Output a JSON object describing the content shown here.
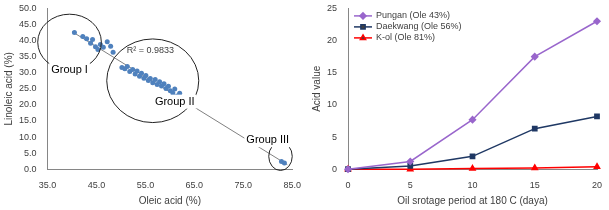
{
  "chart_data": [
    {
      "type": "scatter",
      "x_label": "Oleic acid (%)",
      "y_label": "Linoleic acid (%)",
      "xlim": [
        35,
        85
      ],
      "xticks": [
        {
          "value": 35,
          "label": "35.0"
        },
        {
          "value": 45,
          "label": "45.0"
        },
        {
          "value": 55,
          "label": "55.0"
        },
        {
          "value": 65,
          "label": "65.0"
        },
        {
          "value": 75,
          "label": "75.0"
        },
        {
          "value": 85,
          "label": "85.0"
        }
      ],
      "ylim": [
        0,
        50
      ],
      "yticks": [
        {
          "value": 0,
          "label": "0.0"
        },
        {
          "value": 5,
          "label": "5.0"
        },
        {
          "value": 10,
          "label": "10.0"
        },
        {
          "value": 15,
          "label": "15.0"
        },
        {
          "value": 20,
          "label": "20.0"
        },
        {
          "value": 25,
          "label": "25.0"
        },
        {
          "value": 30,
          "label": "30.0"
        },
        {
          "value": 35,
          "label": "35.0"
        },
        {
          "value": 40,
          "label": "40.0"
        },
        {
          "value": 45,
          "label": "45.0"
        },
        {
          "value": 50,
          "label": "50.0"
        }
      ],
      "grid": false,
      "annotations": [
        {
          "text": "R² = 0.9833",
          "x": 56,
          "y": 37
        }
      ],
      "groups": [
        {
          "label": "Group I",
          "center": [
            39.5,
            39.5
          ],
          "radius": [
            6.5,
            8.7
          ],
          "label_at": [
            39.5,
            31
          ]
        },
        {
          "label": "Group II",
          "center": [
            56.5,
            27.5
          ],
          "radius": [
            9.4,
            13
          ],
          "label_at": [
            61,
            21
          ]
        },
        {
          "label": "Group III",
          "center": [
            82.6,
            4
          ],
          "radius": [
            2.4,
            4.4
          ],
          "label_at": [
            80,
            9
          ]
        }
      ],
      "series": [
        {
          "type": "scatter",
          "color": "#4f81bd",
          "marker": "circle",
          "x": [
            40.5,
            42.2,
            43,
            43.8,
            44.2,
            44.8,
            45.3,
            45.8,
            46.4,
            47.2,
            47.9,
            48.4,
            50.2,
            50.8,
            51.3,
            51.8,
            52.4,
            52.9,
            53.3,
            53.8,
            54.2,
            54.7,
            55.1,
            55.6,
            56.0,
            56.5,
            57.0,
            57.4,
            57.9,
            58.3,
            58.8,
            59.2,
            59.7,
            60.1,
            60.6,
            61.0,
            61.5,
            62.0,
            62.4,
            62.9,
            63.3,
            63.8,
            82.8,
            83.4
          ],
          "values": [
            42.5,
            41.3,
            40.6,
            39.2,
            40.3,
            38.1,
            37.2,
            38.8,
            37.9,
            39.6,
            38.2,
            36.4,
            31.6,
            31.2,
            31.9,
            30.4,
            31.0,
            29.6,
            30.5,
            28.9,
            29.8,
            28.3,
            29.1,
            27.6,
            28.2,
            26.9,
            27.9,
            26.3,
            27.2,
            25.9,
            26.6,
            25.1,
            25.8,
            24.4,
            23.7,
            24.9,
            22.8,
            23.6,
            21.8,
            20.9,
            22.2,
            20.1,
            2.4,
            1.9
          ]
        },
        {
          "type": "line",
          "color": "#808080",
          "line_style": "solid",
          "x": [
            40,
            84
          ],
          "values": [
            42.8,
            1.4
          ]
        }
      ]
    },
    {
      "type": "line",
      "x_label": "Oil srotage period at 180 C (daya)",
      "y_label": "Acid value",
      "x": [
        0,
        5,
        10,
        15,
        20
      ],
      "xlim": [
        0,
        20
      ],
      "xticks": [
        0,
        5,
        10,
        15,
        20
      ],
      "ylim": [
        0,
        25
      ],
      "yticks": [
        0,
        5,
        10,
        15,
        20,
        25
      ],
      "grid": false,
      "legend": "upper left",
      "series": [
        {
          "name": "Pungan (Ole 43%)",
          "color": "#9966cc",
          "marker": "diamond",
          "values": [
            0,
            1.2,
            7.7,
            17.5,
            23
          ]
        },
        {
          "name": "Daekwang (Ole 56%)",
          "color": "#1f3864",
          "marker": "square",
          "values": [
            0,
            0.5,
            2,
            6.3,
            8.2
          ]
        },
        {
          "name": "K-ol (Ole 81%)",
          "color": "#ff0000",
          "marker": "triangle",
          "values": [
            0,
            0,
            0.1,
            0.2,
            0.4
          ]
        }
      ]
    }
  ]
}
